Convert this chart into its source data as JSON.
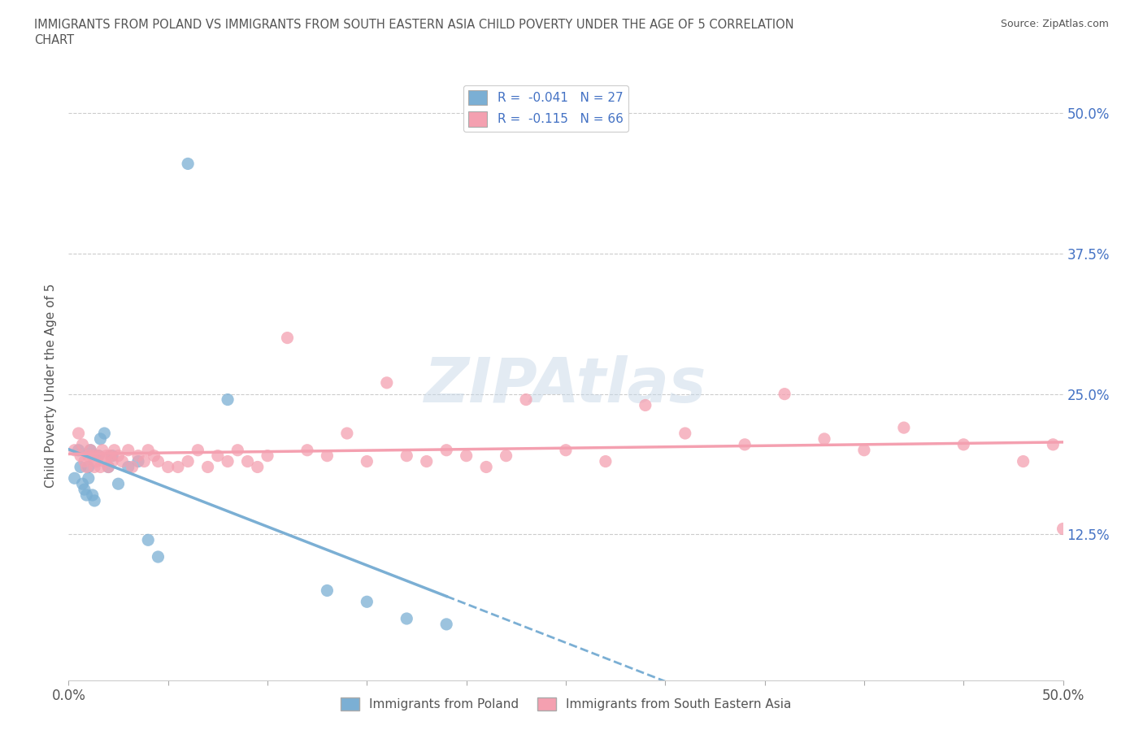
{
  "title_line1": "IMMIGRANTS FROM POLAND VS IMMIGRANTS FROM SOUTH EASTERN ASIA CHILD POVERTY UNDER THE AGE OF 5 CORRELATION",
  "title_line2": "CHART",
  "source_text": "Source: ZipAtlas.com",
  "ylabel": "Child Poverty Under the Age of 5",
  "xlim": [
    0.0,
    0.5
  ],
  "ylim": [
    -0.005,
    0.52
  ],
  "yticks": [
    0.0,
    0.125,
    0.25,
    0.375,
    0.5
  ],
  "ytick_labels": [
    "",
    "12.5%",
    "25.0%",
    "37.5%",
    "50.0%"
  ],
  "xticks": [
    0.0,
    0.1,
    0.2,
    0.3,
    0.4,
    0.5
  ],
  "xtick_labels": [
    "0.0%",
    "",
    "",
    "",
    "",
    "50.0%"
  ],
  "watermark": "ZIPAtlas",
  "legend_r1": "-0.041",
  "legend_n1": "27",
  "legend_r2": "-0.115",
  "legend_n2": "66",
  "color_poland": "#7bafd4",
  "color_sea": "#f4a0b0",
  "poland_x": [
    0.003,
    0.005,
    0.006,
    0.007,
    0.008,
    0.009,
    0.01,
    0.01,
    0.011,
    0.012,
    0.013,
    0.015,
    0.016,
    0.018,
    0.02,
    0.022,
    0.025,
    0.03,
    0.035,
    0.04,
    0.045,
    0.06,
    0.08,
    0.13,
    0.15,
    0.17,
    0.19
  ],
  "poland_y": [
    0.175,
    0.2,
    0.185,
    0.17,
    0.165,
    0.16,
    0.175,
    0.185,
    0.2,
    0.16,
    0.155,
    0.195,
    0.21,
    0.215,
    0.185,
    0.195,
    0.17,
    0.185,
    0.19,
    0.12,
    0.105,
    0.455,
    0.245,
    0.075,
    0.065,
    0.05,
    0.045
  ],
  "sea_x": [
    0.003,
    0.005,
    0.006,
    0.007,
    0.008,
    0.009,
    0.01,
    0.011,
    0.012,
    0.013,
    0.014,
    0.015,
    0.016,
    0.017,
    0.018,
    0.019,
    0.02,
    0.021,
    0.022,
    0.023,
    0.025,
    0.027,
    0.03,
    0.032,
    0.035,
    0.038,
    0.04,
    0.043,
    0.045,
    0.05,
    0.055,
    0.06,
    0.065,
    0.07,
    0.075,
    0.08,
    0.085,
    0.09,
    0.095,
    0.1,
    0.11,
    0.12,
    0.13,
    0.14,
    0.15,
    0.16,
    0.17,
    0.18,
    0.19,
    0.2,
    0.21,
    0.22,
    0.23,
    0.25,
    0.27,
    0.29,
    0.31,
    0.34,
    0.36,
    0.38,
    0.4,
    0.42,
    0.45,
    0.48,
    0.495,
    0.5
  ],
  "sea_y": [
    0.2,
    0.215,
    0.195,
    0.205,
    0.19,
    0.185,
    0.195,
    0.2,
    0.195,
    0.185,
    0.19,
    0.195,
    0.185,
    0.2,
    0.19,
    0.195,
    0.185,
    0.195,
    0.19,
    0.2,
    0.195,
    0.19,
    0.2,
    0.185,
    0.195,
    0.19,
    0.2,
    0.195,
    0.19,
    0.185,
    0.185,
    0.19,
    0.2,
    0.185,
    0.195,
    0.19,
    0.2,
    0.19,
    0.185,
    0.195,
    0.3,
    0.2,
    0.195,
    0.215,
    0.19,
    0.26,
    0.195,
    0.19,
    0.2,
    0.195,
    0.185,
    0.195,
    0.245,
    0.2,
    0.19,
    0.24,
    0.215,
    0.205,
    0.25,
    0.21,
    0.2,
    0.22,
    0.205,
    0.19,
    0.205,
    0.13
  ]
}
